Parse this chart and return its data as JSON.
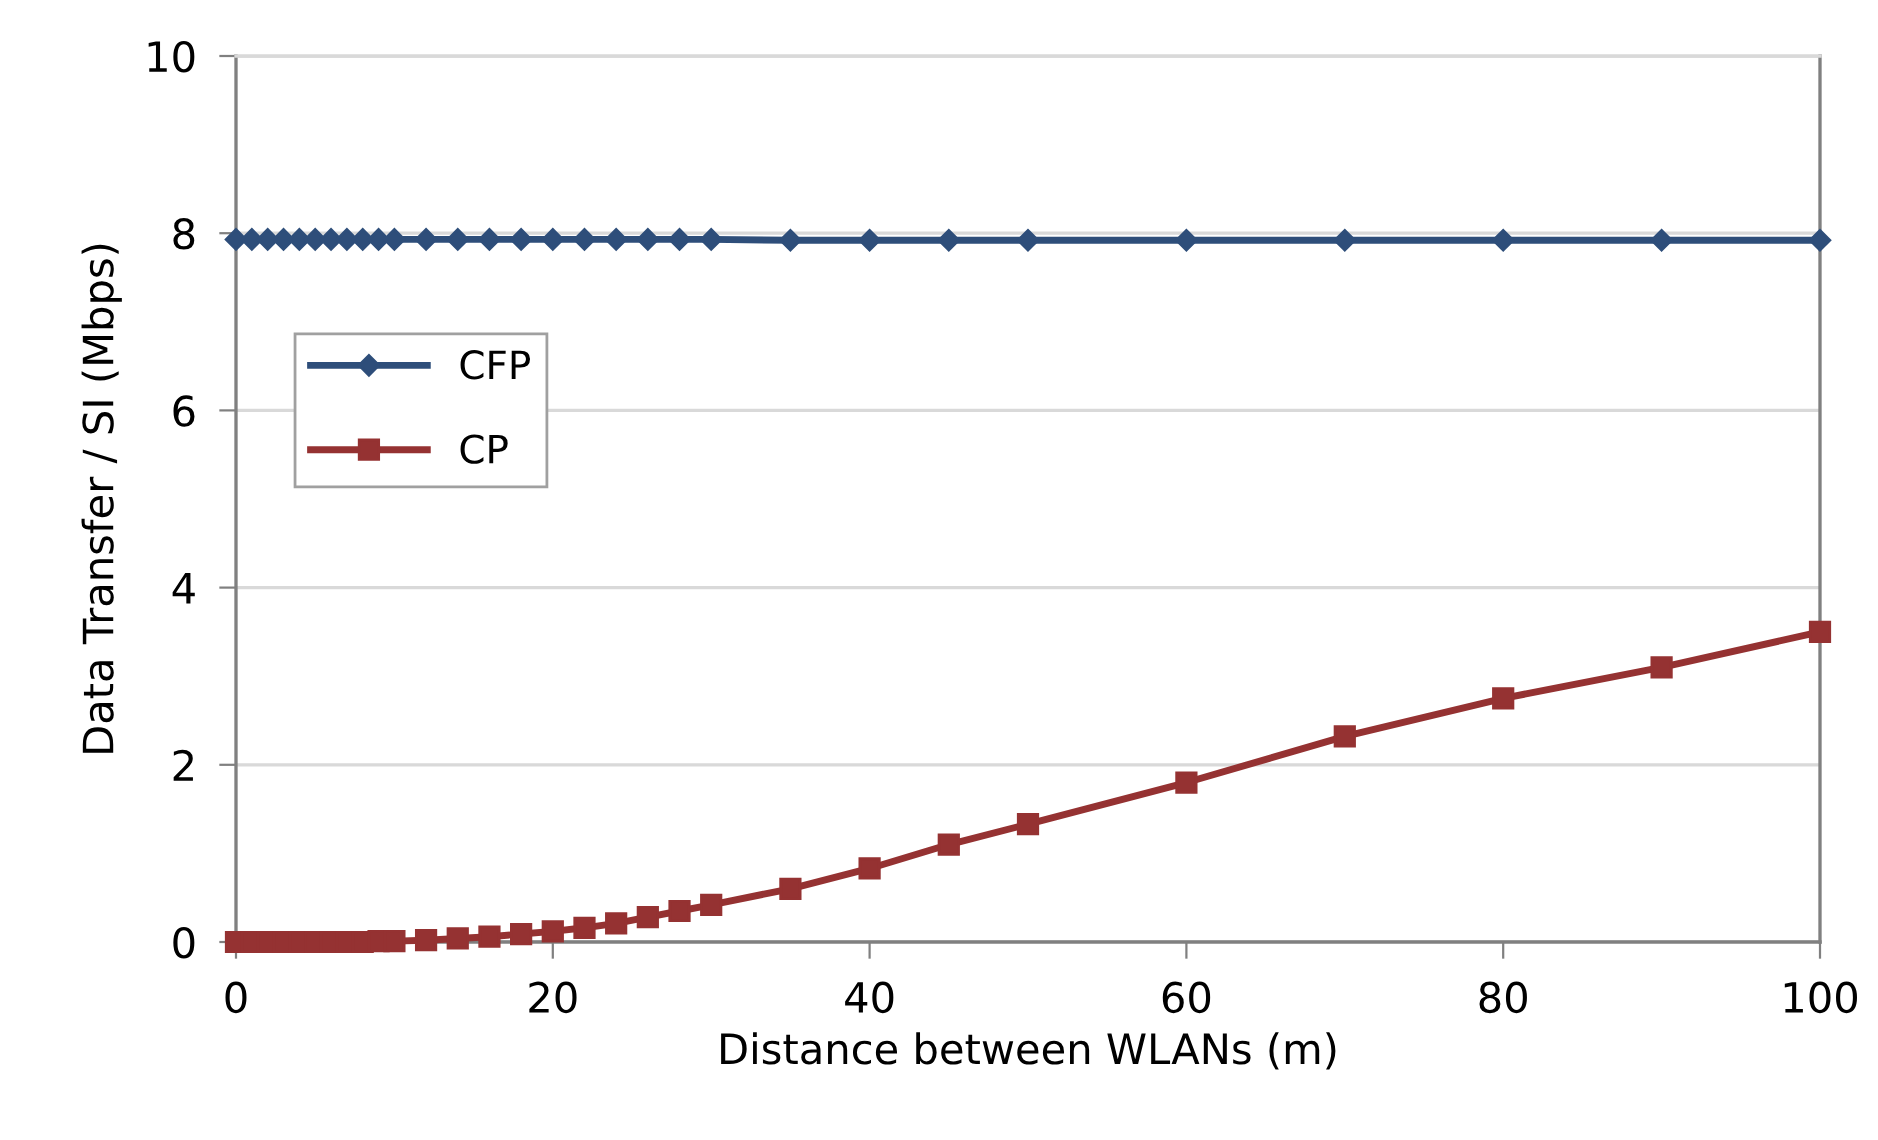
{
  "chart_data": {
    "type": "line",
    "xlabel": "Distance between WLANs (m)",
    "ylabel": "Data Transfer / SI (Mbps)",
    "x": [
      0,
      1,
      2,
      3,
      4,
      5,
      6,
      7,
      8,
      9,
      10,
      12,
      14,
      16,
      18,
      20,
      22,
      24,
      26,
      28,
      30,
      35,
      40,
      45,
      50,
      60,
      70,
      80,
      90,
      100
    ],
    "series": [
      {
        "name": "CFP",
        "color": "#2e4e7a",
        "marker": "diamond",
        "values": [
          7.93,
          7.93,
          7.93,
          7.93,
          7.93,
          7.93,
          7.93,
          7.93,
          7.93,
          7.93,
          7.93,
          7.93,
          7.93,
          7.93,
          7.93,
          7.93,
          7.93,
          7.93,
          7.93,
          7.93,
          7.93,
          7.92,
          7.92,
          7.92,
          7.92,
          7.92,
          7.92,
          7.92,
          7.92,
          7.92
        ]
      },
      {
        "name": "CP",
        "color": "#953232",
        "marker": "square",
        "values": [
          0,
          0,
          0,
          0,
          0,
          0,
          0,
          0,
          0,
          0.01,
          0.01,
          0.02,
          0.04,
          0.06,
          0.09,
          0.12,
          0.16,
          0.21,
          0.28,
          0.35,
          0.42,
          0.6,
          0.83,
          1.1,
          1.33,
          1.8,
          2.32,
          2.75,
          3.1,
          3.5
        ]
      }
    ],
    "xlim": [
      0,
      100
    ],
    "xticks": [
      0,
      20,
      40,
      60,
      80,
      100
    ],
    "ylim": [
      0,
      10
    ],
    "yticks": [
      0,
      2,
      4,
      6,
      8,
      10
    ],
    "grid": "y",
    "legend": "left",
    "line_style": "solid"
  }
}
